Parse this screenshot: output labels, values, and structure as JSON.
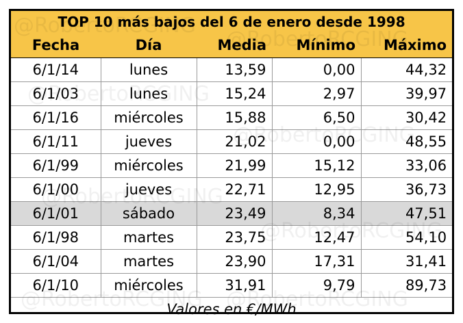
{
  "table": {
    "title": "TOP 10 más bajos del 6 de enero desde 1998",
    "headers": [
      "Fecha",
      "Día",
      "Media",
      "Mínimo",
      "Máximo"
    ],
    "rows": [
      [
        "6/1/14",
        "lunes",
        "13,59",
        "0,00",
        "44,32"
      ],
      [
        "6/1/03",
        "lunes",
        "15,24",
        "2,97",
        "39,97"
      ],
      [
        "6/1/16",
        "miércoles",
        "15,88",
        "6,50",
        "30,42"
      ],
      [
        "6/1/11",
        "jueves",
        "21,02",
        "0,00",
        "48,55"
      ],
      [
        "6/1/99",
        "miércoles",
        "21,99",
        "15,12",
        "33,06"
      ],
      [
        "6/1/00",
        "jueves",
        "22,71",
        "12,95",
        "36,73"
      ],
      [
        "6/1/01",
        "sábado",
        "23,49",
        "8,34",
        "47,51"
      ],
      [
        "6/1/98",
        "martes",
        "23,75",
        "12,47",
        "54,10"
      ],
      [
        "6/1/04",
        "martes",
        "23,90",
        "17,31",
        "31,41"
      ],
      [
        "6/1/10",
        "miércoles",
        "31,91",
        "9,79",
        "89,73"
      ]
    ],
    "footer": "Valores en €/MWh"
  },
  "watermark": "@RobertoRCGING"
}
